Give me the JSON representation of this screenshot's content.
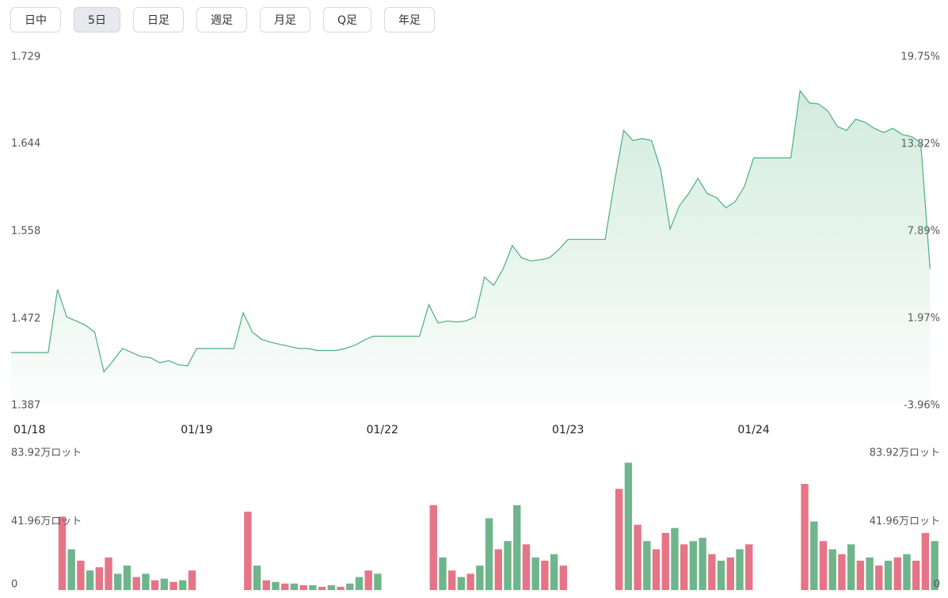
{
  "tabs": {
    "items": [
      "日中",
      "5日",
      "日足",
      "週足",
      "月足",
      "Q足",
      "年足"
    ],
    "selected": 1
  },
  "chart_data": [
    {
      "type": "line",
      "color": "#4caf7d",
      "categories": [
        "01/18",
        null,
        null,
        null,
        null,
        null,
        null,
        null,
        null,
        null,
        null,
        null,
        null,
        null,
        null,
        null,
        null,
        null,
        null,
        null,
        "01/19",
        null,
        null,
        null,
        null,
        null,
        null,
        null,
        null,
        null,
        null,
        null,
        null,
        null,
        null,
        null,
        null,
        null,
        null,
        null,
        "01/22",
        null,
        null,
        null,
        null,
        null,
        null,
        null,
        null,
        null,
        null,
        null,
        null,
        null,
        null,
        null,
        null,
        null,
        null,
        null,
        "01/23",
        null,
        null,
        null,
        null,
        null,
        null,
        null,
        null,
        null,
        null,
        null,
        null,
        null,
        null,
        null,
        null,
        null,
        null,
        null,
        "01/24",
        null,
        null,
        null,
        null,
        null,
        null,
        null,
        null,
        null,
        null,
        null,
        null,
        null,
        null,
        null,
        null,
        null,
        null,
        null
      ],
      "values": [
        1.439,
        1.439,
        1.439,
        1.439,
        1.439,
        1.501,
        1.474,
        1.47,
        1.466,
        1.459,
        1.42,
        1.431,
        1.443,
        1.439,
        1.435,
        1.434,
        1.429,
        1.431,
        1.427,
        1.426,
        1.443,
        1.443,
        1.443,
        1.443,
        1.443,
        1.478,
        1.459,
        1.452,
        1.449,
        1.447,
        1.445,
        1.443,
        1.443,
        1.441,
        1.441,
        1.441,
        1.443,
        1.446,
        1.451,
        1.455,
        1.455,
        1.455,
        1.455,
        1.455,
        1.455,
        1.486,
        1.468,
        1.47,
        1.469,
        1.47,
        1.474,
        1.513,
        1.505,
        1.521,
        1.544,
        1.532,
        1.529,
        1.53,
        1.532,
        1.54,
        1.55,
        1.55,
        1.55,
        1.55,
        1.55,
        1.606,
        1.657,
        1.647,
        1.649,
        1.647,
        1.618,
        1.56,
        1.583,
        1.595,
        1.61,
        1.595,
        1.591,
        1.581,
        1.587,
        1.602,
        1.63,
        1.63,
        1.63,
        1.63,
        1.63,
        1.696,
        1.684,
        1.683,
        1.676,
        1.661,
        1.657,
        1.668,
        1.665,
        1.659,
        1.655,
        1.659,
        1.653,
        1.651,
        1.645,
        1.521
      ],
      "ylim": [
        1.387,
        1.729
      ],
      "yticks": [
        1.387,
        1.472,
        1.558,
        1.644,
        1.729
      ],
      "y2lim": [
        -3.96,
        19.75
      ],
      "y2ticks": [
        {
          "value": -3.96,
          "label": "-3.96%"
        },
        {
          "value": 1.97,
          "label": "1.97%"
        },
        {
          "value": 7.89,
          "label": "7.89%"
        },
        {
          "value": 13.82,
          "label": "13.82%"
        },
        {
          "value": 19.75,
          "label": "19.75%"
        }
      ]
    },
    {
      "type": "bar",
      "values": [
        null,
        null,
        null,
        null,
        null,
        45,
        25,
        18,
        12,
        14,
        20,
        10,
        15,
        8,
        10,
        6,
        7,
        5,
        6,
        12,
        null,
        null,
        null,
        null,
        null,
        48,
        15,
        6,
        5,
        4,
        4,
        3,
        3,
        2,
        3,
        2,
        4,
        8,
        12,
        10,
        null,
        null,
        null,
        null,
        null,
        52,
        20,
        12,
        8,
        10,
        15,
        44,
        25,
        30,
        52,
        28,
        20,
        18,
        22,
        15,
        null,
        null,
        null,
        null,
        null,
        62,
        78,
        40,
        30,
        25,
        35,
        38,
        28,
        30,
        32,
        22,
        18,
        20,
        25,
        28,
        null,
        null,
        null,
        null,
        null,
        65,
        42,
        30,
        25,
        22,
        28,
        18,
        20,
        15,
        18,
        20,
        22,
        18,
        35,
        30
      ],
      "colors": [
        null,
        null,
        null,
        null,
        null,
        "#e25c72",
        "#56a878",
        "#e25c72",
        "#56a878",
        "#e25c72",
        "#e25c72",
        "#56a878",
        "#56a878",
        "#e25c72",
        "#56a878",
        "#e25c72",
        "#56a878",
        "#e25c72",
        "#56a878",
        "#e25c72",
        null,
        null,
        null,
        null,
        null,
        "#e25c72",
        "#56a878",
        "#e25c72",
        "#56a878",
        "#e25c72",
        "#56a878",
        "#e25c72",
        "#56a878",
        "#e25c72",
        "#56a878",
        "#e25c72",
        "#56a878",
        "#56a878",
        "#e25c72",
        "#56a878",
        null,
        null,
        null,
        null,
        null,
        "#e25c72",
        "#56a878",
        "#e25c72",
        "#56a878",
        "#e25c72",
        "#56a878",
        "#56a878",
        "#e25c72",
        "#56a878",
        "#56a878",
        "#e25c72",
        "#56a878",
        "#e25c72",
        "#56a878",
        "#e25c72",
        null,
        null,
        null,
        null,
        null,
        "#e25c72",
        "#56a878",
        "#e25c72",
        "#56a878",
        "#e25c72",
        "#e25c72",
        "#56a878",
        "#e25c72",
        "#56a878",
        "#56a878",
        "#e25c72",
        "#56a878",
        "#e25c72",
        "#56a878",
        "#e25c72",
        null,
        null,
        null,
        null,
        null,
        "#e25c72",
        "#56a878",
        "#e25c72",
        "#56a878",
        "#e25c72",
        "#56a878",
        "#e25c72",
        "#56a878",
        "#e25c72",
        "#56a878",
        "#e25c72",
        "#56a878",
        "#e25c72",
        "#e25c72",
        "#56a878"
      ],
      "ylim": [
        0,
        83.92
      ],
      "yticks": [
        0,
        {
          "value": 41.96,
          "label": "41.96万ロット"
        },
        {
          "value": 83.92,
          "label": "83.92万ロット"
        }
      ]
    }
  ]
}
